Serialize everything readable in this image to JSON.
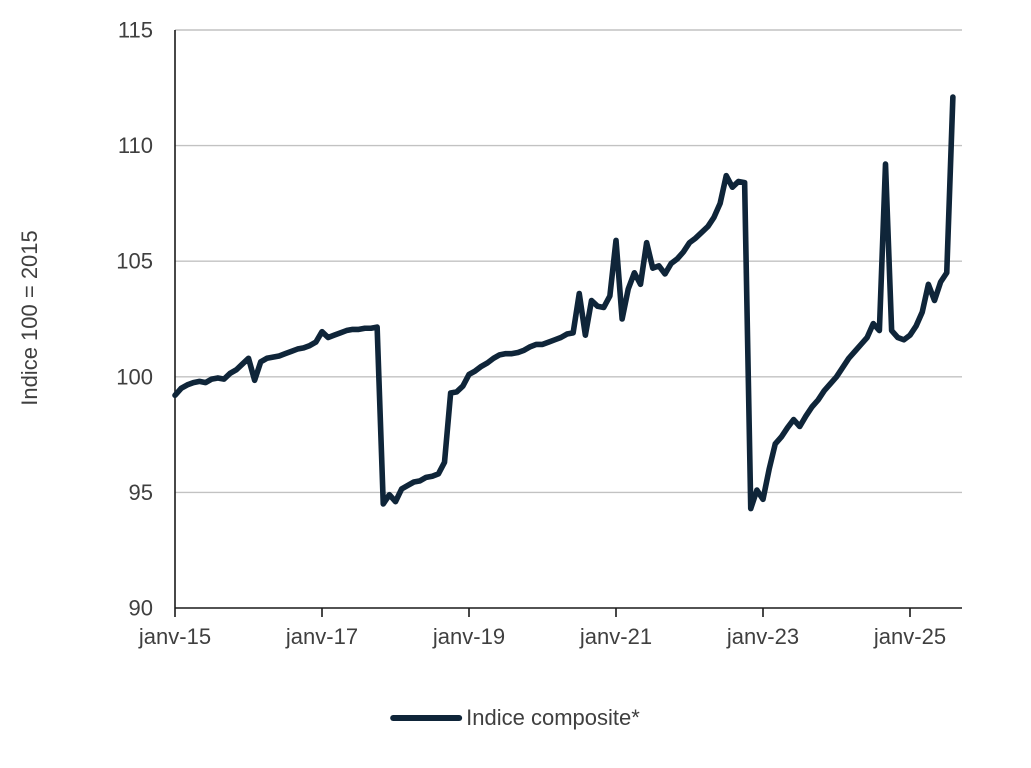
{
  "chart_data": {
    "type": "line",
    "title": "",
    "ylabel": "Indice 100 = 2015",
    "xlabel": "",
    "ylim": [
      90,
      115
    ],
    "y_ticks": [
      90,
      95,
      100,
      105,
      110,
      115
    ],
    "x_tick_labels": [
      "janv-15",
      "janv-17",
      "janv-19",
      "janv-21",
      "janv-23",
      "janv-25"
    ],
    "x_tick_month_index": [
      0,
      24,
      48,
      72,
      96,
      120
    ],
    "grid": "horizontal",
    "legend_position": "bottom-center",
    "colors": {
      "line": "#0f2539",
      "grid": "#c2c2c2",
      "axis": "#1a1a1a",
      "text": "#3f3f3f",
      "background": "#ffffff"
    },
    "series": [
      {
        "name": "Indice composite*",
        "start_month": "janv-15",
        "frequency": "monthly",
        "values": [
          99.2,
          99.5,
          99.65,
          99.75,
          99.8,
          99.75,
          99.9,
          99.95,
          99.9,
          100.15,
          100.3,
          100.55,
          100.8,
          99.85,
          100.65,
          100.8,
          100.85,
          100.9,
          101.0,
          101.1,
          101.2,
          101.25,
          101.35,
          101.5,
          101.95,
          101.7,
          101.8,
          101.9,
          102.0,
          102.05,
          102.05,
          102.1,
          102.1,
          102.15,
          94.5,
          94.9,
          94.6,
          95.15,
          95.3,
          95.45,
          95.5,
          95.65,
          95.7,
          95.8,
          96.3,
          99.3,
          99.35,
          99.6,
          100.1,
          100.25,
          100.45,
          100.6,
          100.8,
          100.95,
          101.0,
          101.0,
          101.05,
          101.15,
          101.3,
          101.4,
          101.4,
          101.5,
          101.6,
          101.7,
          101.85,
          101.9,
          103.6,
          101.8,
          103.3,
          103.05,
          103.0,
          103.5,
          105.9,
          102.5,
          103.8,
          104.5,
          104.0,
          105.8,
          104.7,
          104.8,
          104.45,
          104.9,
          105.1,
          105.4,
          105.8,
          106.0,
          106.25,
          106.5,
          106.9,
          107.5,
          108.7,
          108.2,
          108.45,
          108.4,
          94.3,
          95.1,
          94.7,
          96.0,
          97.1,
          97.4,
          97.8,
          98.15,
          97.85,
          98.3,
          98.7,
          99.0,
          99.4,
          99.7,
          100.0,
          100.4,
          100.8,
          101.1,
          101.4,
          101.7,
          102.3,
          102.0,
          109.2,
          102.0,
          101.7,
          101.6,
          101.8,
          102.2,
          102.8,
          104.0,
          103.3,
          104.1,
          104.5,
          112.1
        ]
      }
    ]
  }
}
